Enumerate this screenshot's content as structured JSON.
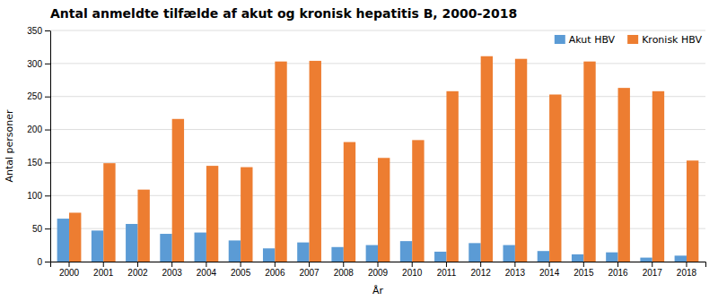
{
  "chart_data": {
    "type": "bar",
    "title": "Antal anmeldte tilfælde af akut og kronisk hepatitis B, 2000-2018",
    "xlabel": "År",
    "ylabel": "Antal personer",
    "categories": [
      "2000",
      "2001",
      "2002",
      "2003",
      "2004",
      "2005",
      "2006",
      "2007",
      "2008",
      "2009",
      "2010",
      "2011",
      "2012",
      "2013",
      "2014",
      "2015",
      "2016",
      "2017",
      "2018"
    ],
    "series": [
      {
        "name": "Akut HBV",
        "color": "#5B9BD5",
        "values": [
          65,
          47,
          57,
          42,
          44,
          32,
          20,
          29,
          22,
          25,
          31,
          15,
          28,
          25,
          16,
          11,
          14,
          6,
          9
        ]
      },
      {
        "name": "Kronisk HBV",
        "color": "#ED7D31",
        "values": [
          74,
          149,
          109,
          216,
          145,
          143,
          303,
          304,
          181,
          157,
          184,
          258,
          311,
          307,
          253,
          303,
          263,
          258,
          153
        ]
      }
    ],
    "ylim": [
      0,
      350
    ],
    "yticks": [
      0,
      50,
      100,
      150,
      200,
      250,
      300,
      350
    ],
    "grid": true,
    "legend": "upper right"
  }
}
